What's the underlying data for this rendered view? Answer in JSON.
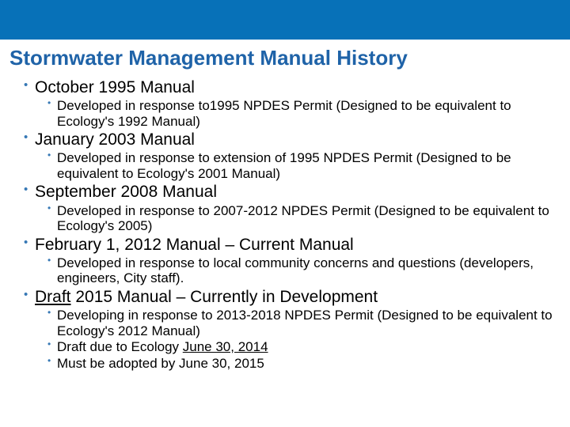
{
  "colors": {
    "top_bar": "#0771b8",
    "title": "#1f63a8",
    "bullet": "#3678b5",
    "text": "#000000",
    "background": "#ffffff"
  },
  "typography": {
    "title_fontsize": 26,
    "l1_fontsize": 21,
    "l2_fontsize": 17,
    "bullet_l1_fontsize": 15,
    "bullet_l2_fontsize": 12
  },
  "title": "Stormwater Management Manual History",
  "items": [
    {
      "heading": "October 1995 Manual",
      "underline": false,
      "sub": [
        {
          "text": "Developed in response to1995 NPDES Permit (Designed to be equivalent to Ecology's 1992 Manual)"
        }
      ]
    },
    {
      "heading": "January 2003 Manual",
      "underline": false,
      "sub": [
        {
          "text": "Developed in response to extension of 1995 NPDES Permit (Designed to be equivalent to Ecology's 2001 Manual)"
        }
      ]
    },
    {
      "heading": "September 2008 Manual",
      "underline": false,
      "sub": [
        {
          "text": "Developed in response to 2007-2012  NPDES Permit (Designed to be equivalent to Ecology's 2005)"
        }
      ]
    },
    {
      "heading": "February 1, 2012 Manual – Current Manual",
      "underline": false,
      "sub": [
        {
          "text": "Developed in response to local community concerns and questions (developers, engineers, City staff)."
        }
      ]
    },
    {
      "heading_prefix": "Draft",
      "heading_rest": " 2015 Manual – Currently in Development",
      "underline": true,
      "sub": [
        {
          "text": "Developing in response to 2013-2018 NPDES Permit (Designed to be equivalent to Ecology's 2012 Manual)"
        },
        {
          "prefix": "Draft due to Ecology ",
          "underline_part": "June 30, 2014"
        },
        {
          "text": "Must be adopted by June 30, 2015"
        }
      ]
    }
  ]
}
